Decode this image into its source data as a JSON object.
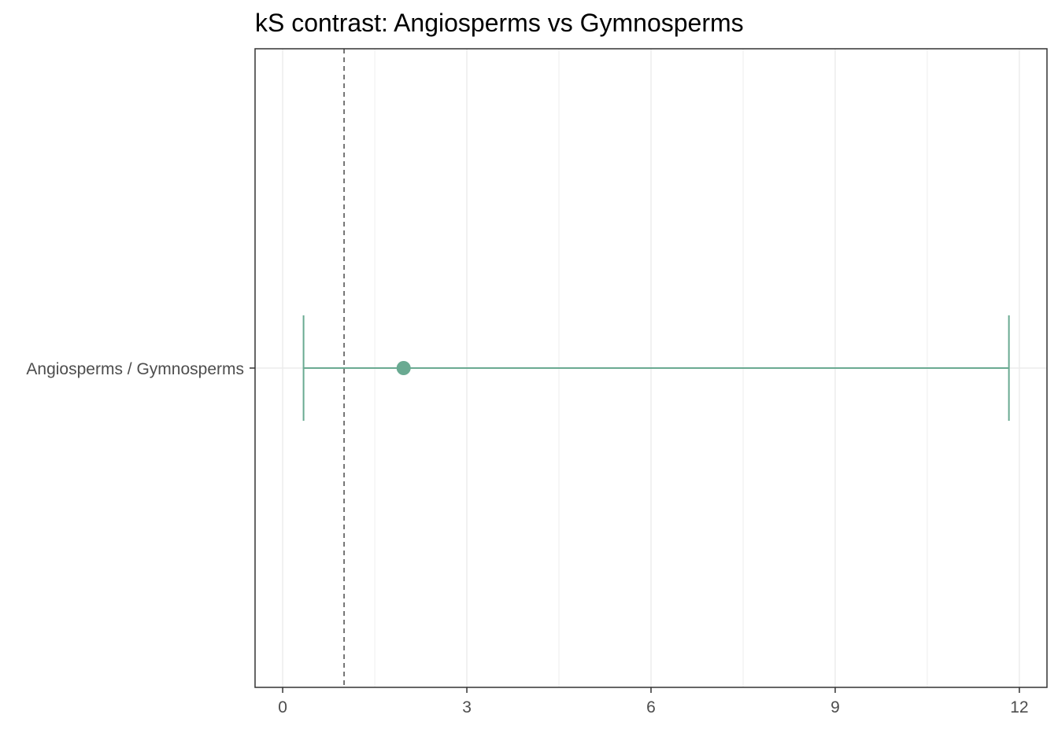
{
  "chart_data": {
    "type": "scatter",
    "title": "kS contrast: Angiosperms vs Gymnosperms",
    "xlabel": "",
    "ylabel": "",
    "xlim": [
      -0.45,
      12.45
    ],
    "x_ticks": [
      0,
      3,
      6,
      9,
      12
    ],
    "x_tick_labels": [
      "0",
      "3",
      "6",
      "9",
      "12"
    ],
    "categories": [
      "Angiosperms / Gymnosperms"
    ],
    "reference_line": {
      "x": 1,
      "style": "dashed",
      "color": "#555555"
    },
    "points": [
      {
        "category": "Angiosperms / Gymnosperms",
        "x": 1.97,
        "lower": 0.34,
        "upper": 11.83
      }
    ],
    "grid": true,
    "legend": "none",
    "colors": {
      "series": "#6aaa92",
      "grid": "#ebebeb",
      "panel_border": "#333333",
      "tick_text": "#4d4d4d"
    }
  }
}
